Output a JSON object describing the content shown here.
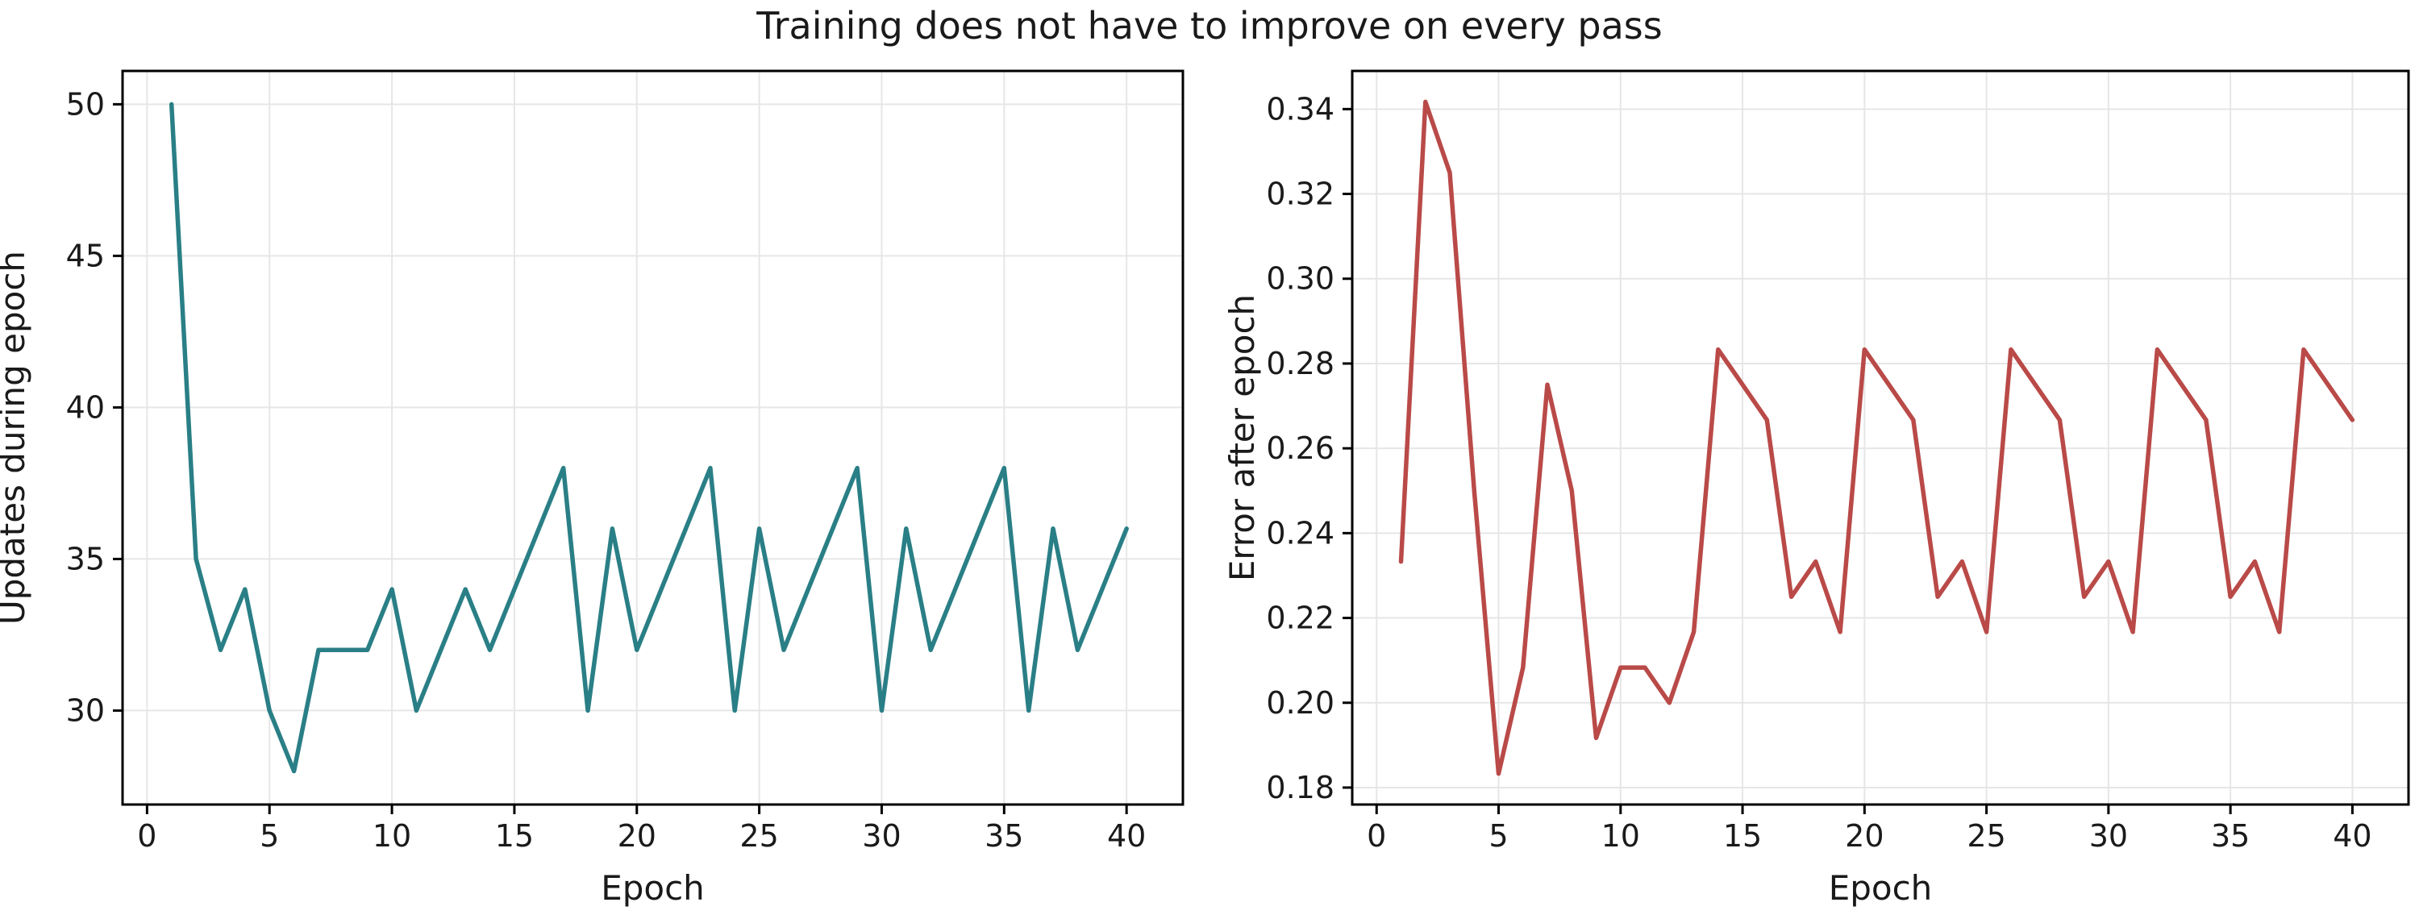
{
  "figure": {
    "title": "Training does not have to improve on every pass"
  },
  "chart_data": [
    {
      "type": "line",
      "title": "",
      "xlabel": "Epoch",
      "ylabel": "Updates during epoch",
      "xlim": [
        -1,
        42.3
      ],
      "ylim": [
        26.9,
        51.1
      ],
      "xticks": [
        0,
        5,
        10,
        15,
        20,
        25,
        30,
        35,
        40
      ],
      "yticks": [
        30,
        35,
        40,
        45,
        50
      ],
      "ytick_decimals": 0,
      "grid": true,
      "legend": "none",
      "series": [
        {
          "color": "#2a7f86",
          "x": [
            1,
            2,
            3,
            4,
            5,
            6,
            7,
            8,
            9,
            10,
            11,
            12,
            13,
            14,
            15,
            16,
            17,
            18,
            19,
            20,
            21,
            22,
            23,
            24,
            25,
            26,
            27,
            28,
            29,
            30,
            31,
            32,
            33,
            34,
            35,
            36,
            37,
            38,
            39,
            40
          ],
          "values": [
            50,
            35,
            32,
            34,
            30,
            28,
            32,
            32,
            32,
            34,
            30,
            32,
            34,
            32,
            34,
            36,
            38,
            30,
            36,
            32,
            34,
            36,
            38,
            30,
            36,
            32,
            34,
            36,
            38,
            30,
            36,
            32,
            34,
            36,
            38,
            30,
            36,
            32,
            34,
            36
          ]
        }
      ]
    },
    {
      "type": "line",
      "title": "",
      "xlabel": "Epoch",
      "ylabel": "Error after epoch",
      "xlim": [
        -1,
        42.3
      ],
      "ylim": [
        0.176,
        0.349
      ],
      "xticks": [
        0,
        5,
        10,
        15,
        20,
        25,
        30,
        35,
        40
      ],
      "yticks": [
        0.18,
        0.2,
        0.22,
        0.24,
        0.26,
        0.28,
        0.3,
        0.32,
        0.34
      ],
      "ytick_decimals": 2,
      "grid": true,
      "legend": "none",
      "series": [
        {
          "color": "#b94a48",
          "x": [
            1,
            2,
            3,
            4,
            5,
            6,
            7,
            8,
            9,
            10,
            11,
            12,
            13,
            14,
            15,
            16,
            17,
            18,
            19,
            20,
            21,
            22,
            23,
            24,
            25,
            26,
            27,
            28,
            29,
            30,
            31,
            32,
            33,
            34,
            35,
            36,
            37,
            38,
            39,
            40
          ],
          "values": [
            0.2333,
            0.3417,
            0.325,
            0.25,
            0.1833,
            0.2083,
            0.275,
            0.25,
            0.1917,
            0.2083,
            0.2083,
            0.2,
            0.2167,
            0.2833,
            0.275,
            0.2667,
            0.225,
            0.2333,
            0.2167,
            0.2833,
            0.275,
            0.2667,
            0.225,
            0.2333,
            0.2167,
            0.2833,
            0.275,
            0.2667,
            0.225,
            0.2333,
            0.2167,
            0.2833,
            0.275,
            0.2667,
            0.225,
            0.2333,
            0.2167,
            0.2833,
            0.275,
            0.2667
          ]
        }
      ]
    }
  ]
}
